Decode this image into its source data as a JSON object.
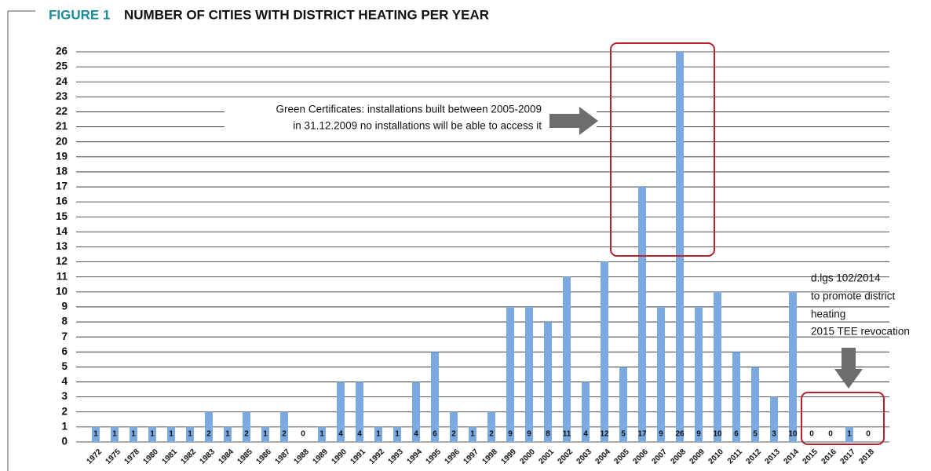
{
  "chart_data": {
    "type": "bar",
    "figure_label": "FIGURE 1",
    "title": "NUMBER OF CITIES WITH DISTRICT HEATING PER YEAR",
    "annotations": [
      "Green Certificates: installations built between 2005-2009",
      "in 31.12.2009 no installations will be able to access it",
      "d.lgs 102/2014",
      "to promote district",
      "heating",
      "2015 TEE revocation"
    ],
    "categories": [
      "1972",
      "1975",
      "1978",
      "1980",
      "1981",
      "1982",
      "1983",
      "1984",
      "1985",
      "1986",
      "1987",
      "1988",
      "1989",
      "1990",
      "1991",
      "1992",
      "1993",
      "1994",
      "1995",
      "1996",
      "1997",
      "1998",
      "1999",
      "2000",
      "2001",
      "2002",
      "2003",
      "2004",
      "2005",
      "2006",
      "2007",
      "2008",
      "2009",
      "2010",
      "2011",
      "2012",
      "2013",
      "2014",
      "2015",
      "2016",
      "2017",
      "2018"
    ],
    "values": [
      1,
      1,
      1,
      1,
      1,
      1,
      2,
      1,
      2,
      1,
      2,
      0,
      1,
      4,
      4,
      1,
      1,
      4,
      6,
      2,
      1,
      2,
      9,
      9,
      8,
      11,
      4,
      12,
      5,
      17,
      9,
      26,
      9,
      10,
      6,
      5,
      3,
      10,
      0,
      0,
      1,
      0
    ],
    "color": "#7aaadf",
    "ylim": [
      0,
      26
    ],
    "yticks": [
      0,
      1,
      2,
      3,
      4,
      5,
      6,
      7,
      8,
      9,
      10,
      11,
      12,
      13,
      14,
      15,
      16,
      17,
      18,
      19,
      20,
      21,
      22,
      23,
      24,
      25,
      26
    ],
    "grid": true
  }
}
